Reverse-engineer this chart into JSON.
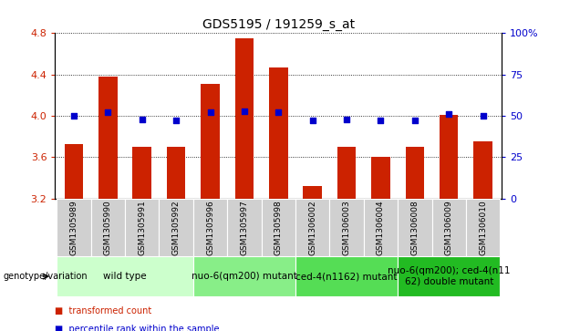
{
  "title": "GDS5195 / 191259_s_at",
  "samples": [
    "GSM1305989",
    "GSM1305990",
    "GSM1305991",
    "GSM1305992",
    "GSM1305996",
    "GSM1305997",
    "GSM1305998",
    "GSM1306002",
    "GSM1306003",
    "GSM1306004",
    "GSM1306008",
    "GSM1306009",
    "GSM1306010"
  ],
  "bar_values": [
    3.73,
    4.38,
    3.7,
    3.7,
    4.31,
    4.75,
    4.47,
    3.32,
    3.7,
    3.6,
    3.7,
    4.01,
    3.75
  ],
  "percentile_values": [
    4.02,
    4.04,
    3.99,
    3.98,
    4.03,
    4.05,
    4.03,
    3.97,
    3.99,
    3.97,
    3.98,
    4.02,
    4.0
  ],
  "ylim_left": [
    3.2,
    4.8
  ],
  "ylim_right": [
    0,
    100
  ],
  "yticks_left": [
    3.2,
    3.6,
    4.0,
    4.4,
    4.8
  ],
  "yticks_right": [
    0,
    25,
    50,
    75,
    100
  ],
  "bar_color": "#CC2200",
  "dot_color": "#0000CC",
  "bar_bottom": 3.2,
  "groups": [
    {
      "label": "wild type",
      "start": 0,
      "end": 3,
      "color": "#ccffcc"
    },
    {
      "label": "nuo-6(qm200) mutant",
      "start": 4,
      "end": 6,
      "color": "#88ee88"
    },
    {
      "label": "ced-4(n1162) mutant",
      "start": 7,
      "end": 9,
      "color": "#55dd55"
    },
    {
      "label": "nuo-6(qm200); ced-4(n11\n62) double mutant",
      "start": 10,
      "end": 12,
      "color": "#22bb22"
    }
  ],
  "legend_items": [
    {
      "label": "transformed count",
      "color": "#CC2200"
    },
    {
      "label": "percentile rank within the sample",
      "color": "#0000CC"
    }
  ],
  "genotype_label": "genotype/variation",
  "left_axis_color": "#CC2200",
  "right_axis_color": "#0000CC",
  "title_fontsize": 10,
  "label_fontsize": 6.5,
  "group_fontsize": 7.5,
  "legend_fontsize": 7,
  "right_tick_labels": [
    "0",
    "25",
    "50",
    "75",
    "100%"
  ]
}
